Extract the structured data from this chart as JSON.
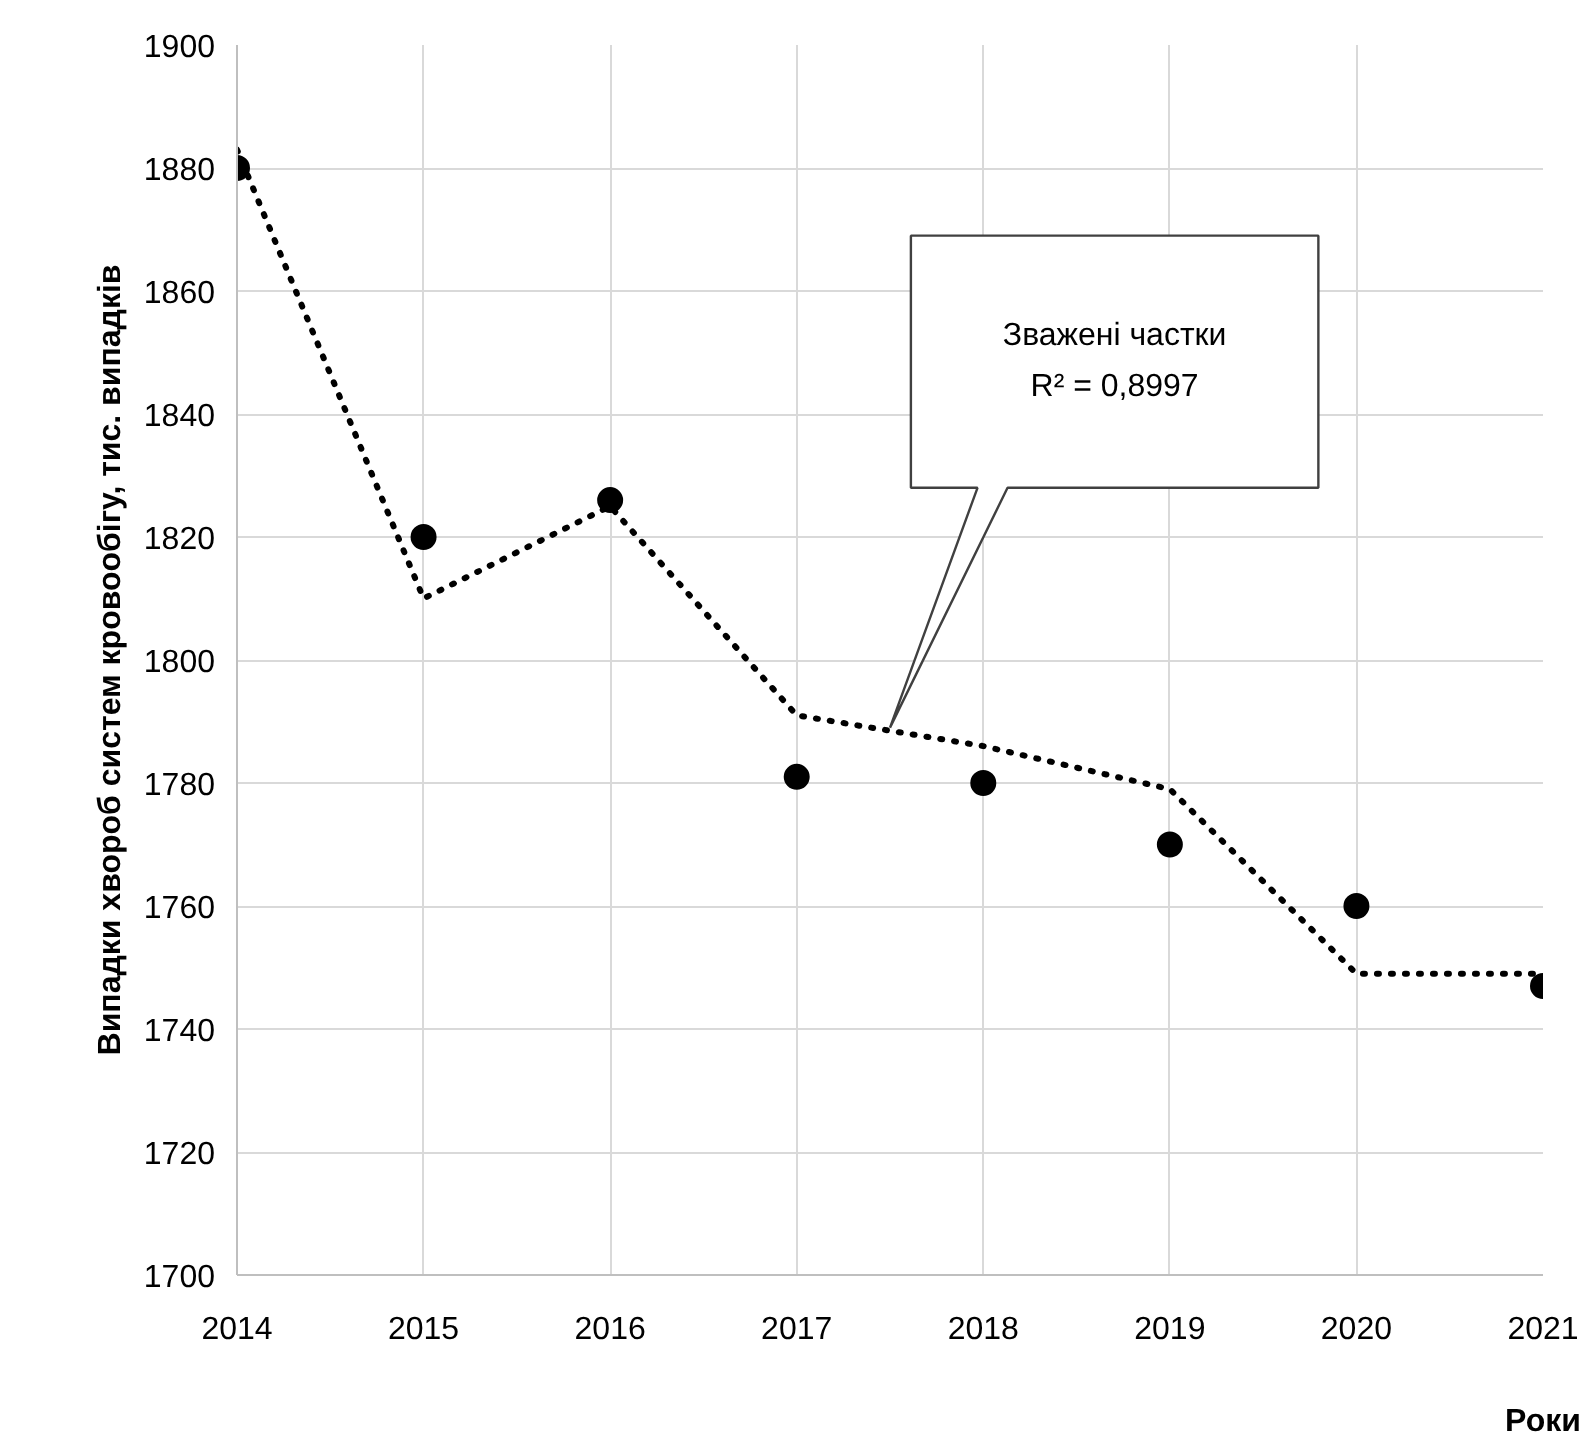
{
  "chart_data": {
    "type": "scatter",
    "xlabel": "Роки",
    "ylabel": "Випадки хвороб систем кровообігу, тис. випадків",
    "x": [
      2014,
      2015,
      2016,
      2017,
      2018,
      2019,
      2020,
      2021
    ],
    "series": [
      {
        "color": "#000000",
        "marker": "circle",
        "values": [
          1880,
          1820,
          1826,
          1781,
          1780,
          1770,
          1760,
          1747
        ]
      },
      {
        "type": "line",
        "color": "#000000",
        "line_style": "dotted",
        "marker": "none",
        "x": [
          2014,
          2015,
          2016,
          2017,
          2018,
          2019,
          2020,
          2021
        ],
        "values": [
          1883,
          1810,
          1825,
          1791,
          1786,
          1779,
          1749,
          1749
        ]
      }
    ],
    "annotations": [
      "Зважені частки\nR² = 0,8997"
    ],
    "xlim": [
      2014,
      2021
    ],
    "ylim": [
      1700,
      1900
    ],
    "xticks": [
      2014,
      2015,
      2016,
      2017,
      2018,
      2019,
      2020,
      2021
    ],
    "yticks": [
      1700,
      1720,
      1740,
      1760,
      1780,
      1800,
      1820,
      1840,
      1860,
      1880,
      1900
    ],
    "grid": true
  }
}
